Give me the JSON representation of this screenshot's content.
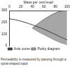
{
  "chart_data": {
    "type": "line",
    "x_label": "Mass per cent lead",
    "annotation": "Permeability is measured by passing through a spiral-shaped stack",
    "x": [
      0,
      10,
      20,
      30,
      40,
      50,
      60,
      70,
      80,
      90,
      100
    ],
    "xlim": [
      0,
      100
    ],
    "xticks": [
      0,
      20,
      40,
      60,
      80,
      100
    ],
    "ylim": [
      0,
      300
    ],
    "yticks": [
      0,
      100,
      200,
      300
    ],
    "grid": false,
    "legend": "bottom",
    "series": [
      {
        "name": "Purity diagram",
        "color": "#a6a6a6",
        "values": [
          null,
          null,
          null,
          null,
          150,
          190,
          225,
          255,
          280,
          295,
          300
        ],
        "lower_values": [
          null,
          null,
          null,
          null,
          150,
          120,
          95,
          70,
          45,
          25,
          10
        ]
      },
      {
        "name": "Axis curve",
        "color": "#404040",
        "values": [
          230,
          222,
          210,
          195,
          178,
          160,
          140,
          118,
          95,
          72,
          50
        ]
      }
    ]
  }
}
